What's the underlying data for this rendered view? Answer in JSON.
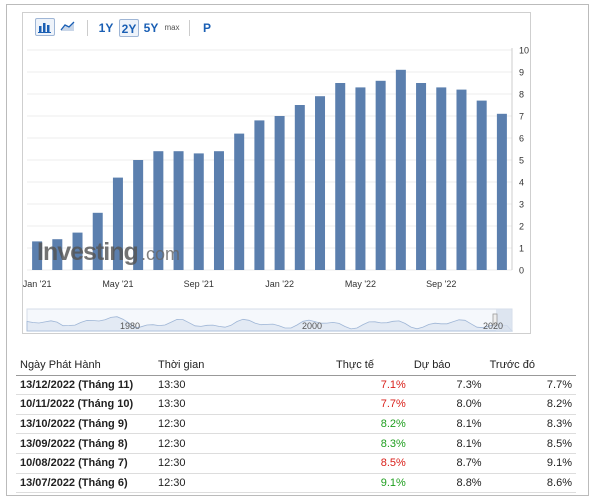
{
  "toolbar": {
    "ranges": [
      "1Y",
      "2Y",
      "5Y"
    ],
    "max_label": "max",
    "p_label": "P",
    "active_range": "2Y"
  },
  "chart_data": {
    "type": "bar",
    "categories": [
      "Jan '21",
      "Feb '21",
      "Mar '21",
      "Apr '21",
      "May '21",
      "Jun '21",
      "Jul '21",
      "Aug '21",
      "Sep '21",
      "Oct '21",
      "Nov '21",
      "Dec '21",
      "Jan '22",
      "Feb '22",
      "Mar '22",
      "Apr '22",
      "May '22",
      "Jun '22",
      "Jul '22",
      "Aug '22",
      "Sep '22",
      "Oct '22",
      "Nov '22",
      "Dec '22"
    ],
    "values": [
      1.3,
      1.4,
      1.7,
      2.6,
      4.2,
      5.0,
      5.4,
      5.4,
      5.3,
      5.4,
      6.2,
      6.8,
      7.0,
      7.5,
      7.9,
      8.5,
      8.3,
      8.6,
      9.1,
      8.5,
      8.3,
      8.2,
      7.7,
      7.1
    ],
    "x_tick_labels": [
      "Jan '21",
      "May '21",
      "Sep '21",
      "Jan '22",
      "May '22",
      "Sep '22"
    ],
    "ylim": [
      0,
      10
    ],
    "y_ticks": [
      0,
      1,
      2,
      3,
      4,
      5,
      6,
      7,
      8,
      9,
      10
    ],
    "y_axis_side": "right",
    "bar_color": "#5b7fae",
    "grid": "horizontal",
    "watermark": "Investing.com",
    "navigator_labels": [
      "1980",
      "2000",
      "2020"
    ]
  },
  "table": {
    "headers": [
      "Ngày Phát Hành",
      "Thời gian",
      "Thực tế",
      "Dự báo",
      "Trước đó"
    ],
    "rows": [
      {
        "date": "13/12/2022 (Tháng 11)",
        "time": "13:30",
        "actual": "7.1%",
        "forecast": "7.3%",
        "previous": "7.7%",
        "trend": "down"
      },
      {
        "date": "10/11/2022 (Tháng 10)",
        "time": "13:30",
        "actual": "7.7%",
        "forecast": "8.0%",
        "previous": "8.2%",
        "trend": "down"
      },
      {
        "date": "13/10/2022 (Tháng 9)",
        "time": "12:30",
        "actual": "8.2%",
        "forecast": "8.1%",
        "previous": "8.3%",
        "trend": "up"
      },
      {
        "date": "13/09/2022 (Tháng 8)",
        "time": "12:30",
        "actual": "8.3%",
        "forecast": "8.1%",
        "previous": "8.5%",
        "trend": "up"
      },
      {
        "date": "10/08/2022 (Tháng 7)",
        "time": "12:30",
        "actual": "8.5%",
        "forecast": "8.7%",
        "previous": "9.1%",
        "trend": "down"
      },
      {
        "date": "13/07/2022 (Tháng 6)",
        "time": "12:30",
        "actual": "9.1%",
        "forecast": "8.8%",
        "previous": "8.6%",
        "trend": "up"
      }
    ],
    "colors": {
      "up": "#1e9e1e",
      "down": "#d91e18"
    }
  }
}
